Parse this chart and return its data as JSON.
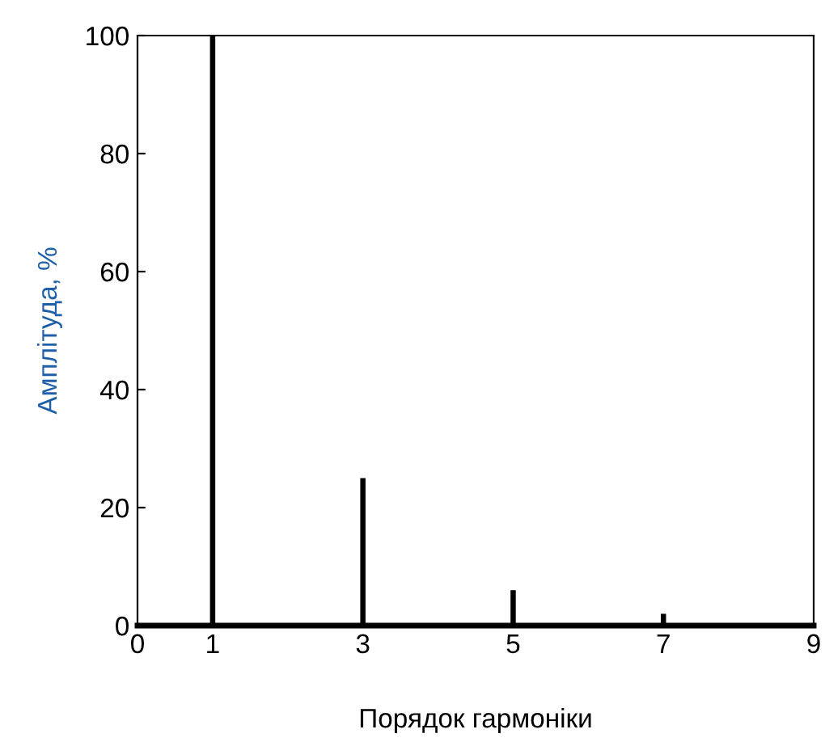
{
  "chart_data": {
    "type": "bar",
    "xlabel": "Порядок гармоніки",
    "ylabel": "Амплітуда, %",
    "x": [
      1,
      3,
      5,
      7
    ],
    "values": [
      100,
      25,
      6,
      2
    ],
    "color": "#000000",
    "xlim": [
      0,
      9
    ],
    "xticks": [
      0,
      1,
      3,
      5,
      7,
      9
    ],
    "ylim": [
      0,
      100
    ],
    "yticks": [
      0,
      20,
      40,
      60,
      80,
      100
    ],
    "grid": false
  }
}
